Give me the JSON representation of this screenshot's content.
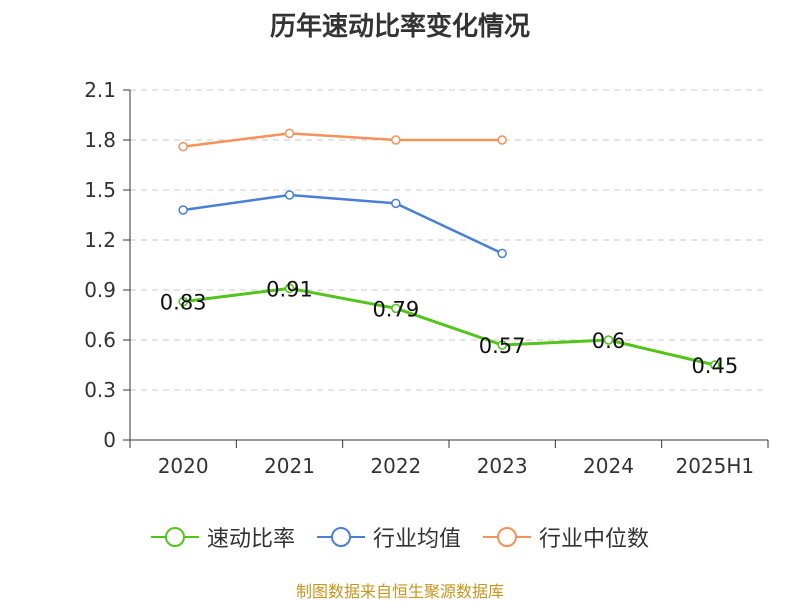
{
  "chart_data": {
    "type": "line",
    "title": "历年速动比率变化情况",
    "categories": [
      "2020",
      "2021",
      "2022",
      "2023",
      "2024",
      "2025H1"
    ],
    "ylim": [
      0,
      2.1
    ],
    "yticks": [
      "0",
      "0.3",
      "0.6",
      "0.9",
      "1.2",
      "1.5",
      "1.8",
      "2.1"
    ],
    "grid": true,
    "legend_position": "bottom",
    "series": [
      {
        "name": "速动比率",
        "color": "#52c41a",
        "values": [
          0.83,
          0.91,
          0.79,
          0.57,
          0.6,
          0.45
        ],
        "data_labels": [
          "0.83",
          "0.91",
          "0.79",
          "0.57",
          "0.6",
          "0.45"
        ]
      },
      {
        "name": "行业均值",
        "color": "#4a7fd6",
        "values": [
          1.38,
          1.47,
          1.42,
          1.12,
          null,
          null
        ]
      },
      {
        "name": "行业中位数",
        "color": "#f5925a",
        "values": [
          1.76,
          1.84,
          1.8,
          1.8,
          null,
          null
        ]
      }
    ]
  },
  "source_note": "制图数据来自恒生聚源数据库"
}
